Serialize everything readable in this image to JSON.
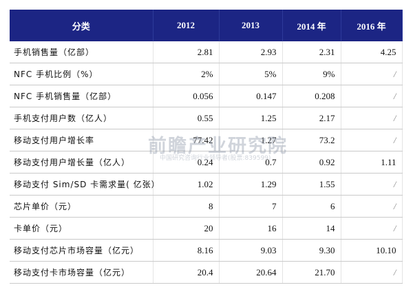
{
  "table": {
    "header": [
      "分类",
      "2012",
      "2013",
      "2014 年",
      "2016 年"
    ],
    "rows": [
      [
        "手机销售量（亿部）",
        "2.81",
        "2.93",
        "2.31",
        "4.25"
      ],
      [
        "NFC 手机比例（%）",
        "2%",
        "5%",
        "9%",
        "/"
      ],
      [
        "NFC 手机销售量（亿部）",
        "0.056",
        "0.147",
        "0.208",
        "/"
      ],
      [
        "手机支付用户数（亿人）",
        "0.55",
        "1.25",
        "2.17",
        "/"
      ],
      [
        "移动支付用户增长率",
        "77.42",
        "1.27",
        "73.2",
        "/"
      ],
      [
        "移动支付用户增长量（亿人）",
        "0.24",
        "0.7",
        "0.92",
        "1.11"
      ],
      [
        "移动支付 Sim/SD 卡需求量( 亿张）",
        "1.02",
        "1.29",
        "1.55",
        "/"
      ],
      [
        "芯片单价（元）",
        "8",
        "7",
        "6",
        "/"
      ],
      [
        "卡单价（元）",
        "20",
        "16",
        "14",
        "/"
      ],
      [
        "移动支付芯片市场容量（亿元）",
        "8.16",
        "9.03",
        "9.30",
        "10.10"
      ],
      [
        "移动支付卡市场容量（亿元）",
        "20.4",
        "20.64",
        "21.70",
        "/"
      ]
    ]
  },
  "watermark": {
    "name": "前瞻产业研究院",
    "tagline": "中国研究咨询行业领导者(股票:839599)"
  }
}
